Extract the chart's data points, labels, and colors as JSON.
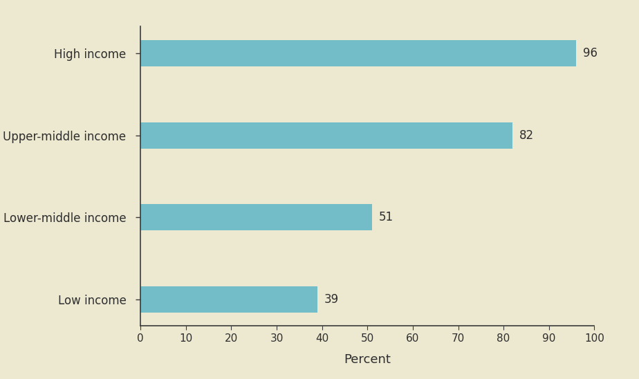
{
  "categories": [
    "Low income",
    "Lower-middle income",
    "Upper-middle income",
    "High income"
  ],
  "values": [
    39,
    51,
    82,
    96
  ],
  "bar_color": "#72BDC8",
  "background_color": "#EDE8D0",
  "label_color": "#2e2e2e",
  "text_color": "#2e2e2e",
  "xlabel": "Percent",
  "xlim": [
    0,
    100
  ],
  "xticks": [
    0,
    10,
    20,
    30,
    40,
    50,
    60,
    70,
    80,
    90,
    100
  ],
  "bar_height": 0.32,
  "xlabel_fontsize": 13,
  "ytick_fontsize": 12,
  "xtick_fontsize": 11,
  "value_label_fontsize": 12,
  "spine_color": "#3a3a3a"
}
